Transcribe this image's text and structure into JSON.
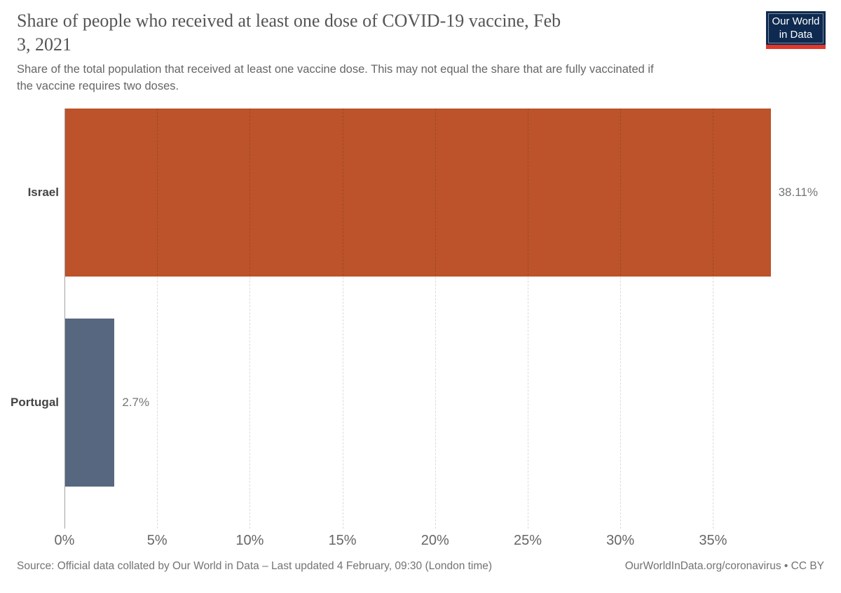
{
  "header": {
    "title": "Share of people who received at least one dose of COVID-19 vaccine, Feb\n3, 2021",
    "subtitle": "Share of the total population that received at least one vaccine dose. This may not equal the share that are fully vaccinated if\nthe vaccine requires two doses."
  },
  "logo": {
    "line1": "Our World",
    "line2": "in Data",
    "background_color": "#0e2a50",
    "accent_color": "#e0392c"
  },
  "chart_data": {
    "type": "bar",
    "orientation": "horizontal",
    "title": "Share of people who received at least one dose of COVID-19 vaccine, Feb 3, 2021",
    "categories": [
      "Israel",
      "Portugal"
    ],
    "values": [
      38.11,
      2.7
    ],
    "value_labels": [
      "38.11%",
      "2.7%"
    ],
    "bar_colors": [
      "#bc532b",
      "#586780"
    ],
    "x_ticks": [
      0,
      5,
      10,
      15,
      20,
      25,
      30,
      35
    ],
    "x_tick_labels": [
      "0%",
      "5%",
      "10%",
      "15%",
      "20%",
      "25%",
      "30%",
      "35%"
    ],
    "xlim": [
      0,
      41
    ],
    "grid": "vertical-dashed",
    "legend": "none"
  },
  "footer": {
    "source": "Source: Official data collated by Our World in Data – Last updated 4 February, 09:30 (London time)",
    "right": "OurWorldInData.org/coronavirus • CC BY"
  }
}
